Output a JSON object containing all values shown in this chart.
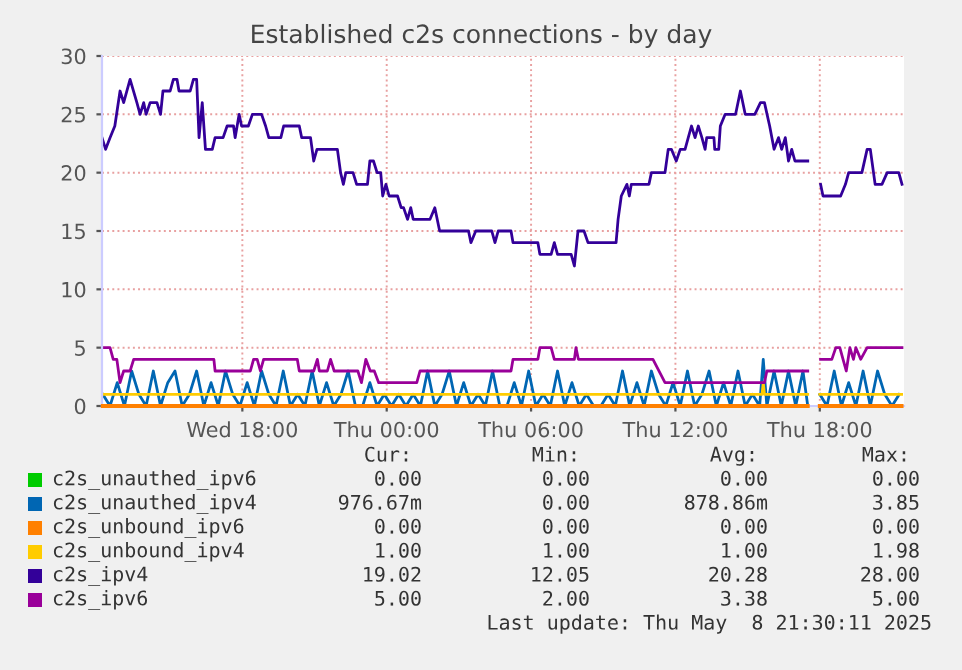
{
  "chart_data": {
    "type": "line",
    "title": "Established c2s connections - by day",
    "xlim": [
      "2025-05-07T12:10",
      "2025-05-08T21:30"
    ],
    "ylim": [
      0,
      30
    ],
    "yticks": [
      0,
      5,
      10,
      15,
      20,
      25,
      30
    ],
    "xticks": [
      {
        "value": "2025-05-07T18:00",
        "label": "Wed 18:00"
      },
      {
        "value": "2025-05-08T00:00",
        "label": "Thu 00:00"
      },
      {
        "value": "2025-05-08T06:00",
        "label": "Thu 06:00"
      },
      {
        "value": "2025-05-08T12:00",
        "label": "Thu 12:00"
      },
      {
        "value": "2025-05-08T18:00",
        "label": "Thu 18:00"
      }
    ],
    "grid": true,
    "legend": "bottom",
    "marker": "none",
    "line_style": "solid",
    "series": [
      {
        "name": "c2s_unauthed_ipv6",
        "color": "#00cc00"
      },
      {
        "name": "c2s_unauthed_ipv4",
        "color": "#0066b3",
        "x": [
          "2025-05-07T12:12",
          "2025-05-07T12:30",
          "2025-05-07T12:48",
          "2025-05-07T13:06",
          "2025-05-07T13:24",
          "2025-05-07T13:42",
          "2025-05-07T14:00",
          "2025-05-07T14:18",
          "2025-05-07T14:36",
          "2025-05-07T14:54",
          "2025-05-07T15:12",
          "2025-05-07T15:30",
          "2025-05-07T15:48",
          "2025-05-07T16:06",
          "2025-05-07T16:24",
          "2025-05-07T16:42",
          "2025-05-07T17:00",
          "2025-05-07T17:18",
          "2025-05-07T17:36",
          "2025-05-07T17:54",
          "2025-05-07T18:12",
          "2025-05-07T18:30",
          "2025-05-07T18:48",
          "2025-05-07T19:06",
          "2025-05-07T19:24",
          "2025-05-07T19:42",
          "2025-05-07T20:00",
          "2025-05-07T20:18",
          "2025-05-07T20:36",
          "2025-05-07T20:54",
          "2025-05-07T21:12",
          "2025-05-07T21:30",
          "2025-05-07T21:48",
          "2025-05-07T22:06",
          "2025-05-07T22:24",
          "2025-05-07T22:42",
          "2025-05-07T23:00",
          "2025-05-07T23:18",
          "2025-05-07T23:36",
          "2025-05-07T23:54",
          "2025-05-08T00:12",
          "2025-05-08T00:30",
          "2025-05-08T00:48",
          "2025-05-08T01:06",
          "2025-05-08T01:24",
          "2025-05-08T01:42",
          "2025-05-08T02:00",
          "2025-05-08T02:18",
          "2025-05-08T02:36",
          "2025-05-08T02:54",
          "2025-05-08T03:12",
          "2025-05-08T03:30",
          "2025-05-08T03:48",
          "2025-05-08T04:06",
          "2025-05-08T04:24",
          "2025-05-08T04:42",
          "2025-05-08T05:00",
          "2025-05-08T05:18",
          "2025-05-08T05:36",
          "2025-05-08T05:54",
          "2025-05-08T06:12",
          "2025-05-08T06:30",
          "2025-05-08T06:48",
          "2025-05-08T07:06",
          "2025-05-08T07:24",
          "2025-05-08T07:42",
          "2025-05-08T08:00",
          "2025-05-08T08:18",
          "2025-05-08T08:36",
          "2025-05-08T08:54",
          "2025-05-08T09:12",
          "2025-05-08T09:30",
          "2025-05-08T09:48",
          "2025-05-08T10:06",
          "2025-05-08T10:24",
          "2025-05-08T10:42",
          "2025-05-08T11:00",
          "2025-05-08T11:18",
          "2025-05-08T11:36",
          "2025-05-08T11:54",
          "2025-05-08T12:12",
          "2025-05-08T12:30",
          "2025-05-08T12:48",
          "2025-05-08T13:06",
          "2025-05-08T13:24",
          "2025-05-08T13:42",
          "2025-05-08T14:00",
          "2025-05-08T14:18",
          "2025-05-08T14:36",
          "2025-05-08T14:54",
          "2025-05-08T15:12",
          "2025-05-08T15:30",
          "2025-05-08T15:39",
          "2025-05-08T15:48",
          "2025-05-08T16:06",
          "2025-05-08T16:24",
          "2025-05-08T16:42",
          "2025-05-08T17:00",
          "2025-05-08T17:18",
          "2025-05-08T17:30",
          "2025-05-08T17:48",
          "2025-05-08T18:00",
          "2025-05-08T18:18",
          "2025-05-08T18:36",
          "2025-05-08T18:54",
          "2025-05-08T19:12",
          "2025-05-08T19:30",
          "2025-05-08T19:48",
          "2025-05-08T20:06",
          "2025-05-08T20:24",
          "2025-05-08T20:42",
          "2025-05-08T21:00",
          "2025-05-08T21:18"
        ],
        "values": [
          1,
          0,
          2,
          0,
          3,
          1,
          0,
          3,
          0,
          2,
          3,
          0,
          1,
          3,
          0,
          2,
          0,
          3,
          1,
          0,
          2,
          0,
          3,
          1,
          0,
          3,
          0,
          1,
          0,
          3,
          0,
          2,
          0,
          1,
          3,
          0,
          0,
          2,
          0,
          1,
          0,
          1,
          0,
          1,
          0,
          3,
          0,
          1,
          3,
          0,
          2,
          0,
          1,
          0,
          3,
          0,
          0,
          2,
          0,
          3,
          0,
          1,
          0,
          3,
          0,
          2,
          0,
          1,
          0,
          0,
          1,
          0,
          3,
          0,
          2,
          0,
          3,
          1,
          0,
          2,
          0,
          3,
          0,
          1,
          3,
          0,
          2,
          0,
          3,
          0,
          1,
          0,
          4,
          0,
          3,
          0,
          3,
          0,
          3,
          0,
          null,
          1,
          0,
          3,
          0,
          2,
          0,
          3,
          0,
          3,
          1,
          0,
          1
        ]
      },
      {
        "name": "c2s_unbound_ipv6",
        "color": "#ff8000",
        "x": [
          "2025-05-07T12:12",
          "2025-05-08T17:30",
          "2025-05-08T17:48",
          "2025-05-08T18:00",
          "2025-05-08T21:24"
        ],
        "values": [
          0,
          0,
          null,
          0,
          0
        ]
      },
      {
        "name": "c2s_unbound_ipv4",
        "color": "#ffcc00",
        "x": [
          "2025-05-07T12:12",
          "2025-05-08T15:36",
          "2025-05-08T15:39",
          "2025-05-08T15:42",
          "2025-05-08T17:30",
          "2025-05-08T17:48",
          "2025-05-08T18:00",
          "2025-05-08T21:24"
        ],
        "values": [
          1,
          1,
          2,
          1,
          1,
          null,
          1,
          1
        ]
      },
      {
        "name": "c2s_ipv4",
        "color": "#330099",
        "x": [
          "2025-05-07T12:10",
          "2025-05-07T12:19",
          "2025-05-07T12:30",
          "2025-05-07T12:42",
          "2025-05-07T12:55",
          "2025-05-07T13:04",
          "2025-05-07T13:20",
          "2025-05-07T13:37",
          "2025-05-07T13:45",
          "2025-05-07T13:54",
          "2025-05-07T14:00",
          "2025-05-07T14:10",
          "2025-05-07T14:27",
          "2025-05-07T14:36",
          "2025-05-07T14:42",
          "2025-05-07T15:00",
          "2025-05-07T15:08",
          "2025-05-07T15:17",
          "2025-05-07T15:22",
          "2025-05-07T15:50",
          "2025-05-07T15:58",
          "2025-05-07T16:06",
          "2025-05-07T16:12",
          "2025-05-07T16:20",
          "2025-05-07T16:28",
          "2025-05-07T16:45",
          "2025-05-07T16:52",
          "2025-05-07T17:12",
          "2025-05-07T17:22",
          "2025-05-07T17:38",
          "2025-05-07T17:42",
          "2025-05-07T17:52",
          "2025-05-07T17:58",
          "2025-05-07T18:15",
          "2025-05-07T18:25",
          "2025-05-07T18:48",
          "2025-05-07T18:58",
          "2025-05-07T19:06",
          "2025-05-07T19:36",
          "2025-05-07T19:43",
          "2025-05-07T20:22",
          "2025-05-07T20:28",
          "2025-05-07T20:50",
          "2025-05-07T20:58",
          "2025-05-07T21:06",
          "2025-05-07T21:57",
          "2025-05-07T22:05",
          "2025-05-07T22:12",
          "2025-05-07T22:18",
          "2025-05-07T22:36",
          "2025-05-07T22:45",
          "2025-05-07T23:12",
          "2025-05-07T23:18",
          "2025-05-07T23:27",
          "2025-05-07T23:36",
          "2025-05-07T23:45",
          "2025-05-07T23:50",
          "2025-05-07T23:58",
          "2025-05-08T00:06",
          "2025-05-08T00:27",
          "2025-05-08T00:36",
          "2025-05-08T00:42",
          "2025-05-08T00:52",
          "2025-05-08T01:00",
          "2025-05-08T01:06",
          "2025-05-08T01:48",
          "2025-05-08T02:00",
          "2025-05-08T02:12",
          "2025-05-08T03:24",
          "2025-05-08T03:30",
          "2025-05-08T03:42",
          "2025-05-08T04:22",
          "2025-05-08T04:30",
          "2025-05-08T04:38",
          "2025-05-08T05:10",
          "2025-05-08T05:15",
          "2025-05-08T06:17",
          "2025-05-08T06:22",
          "2025-05-08T06:50",
          "2025-05-08T06:58",
          "2025-05-08T07:06",
          "2025-05-08T07:40",
          "2025-05-08T07:48",
          "2025-05-08T07:57",
          "2025-05-08T08:12",
          "2025-05-08T08:22",
          "2025-05-08T09:32",
          "2025-05-08T09:37",
          "2025-05-08T09:45",
          "2025-05-08T09:59",
          "2025-05-08T10:05",
          "2025-05-08T10:10",
          "2025-05-08T10:54",
          "2025-05-08T11:00",
          "2025-05-08T11:34",
          "2025-05-08T11:42",
          "2025-05-08T11:50",
          "2025-05-08T12:02",
          "2025-05-08T12:12",
          "2025-05-08T12:24",
          "2025-05-08T12:32",
          "2025-05-08T12:40",
          "2025-05-08T12:49",
          "2025-05-08T12:57",
          "2025-05-08T13:06",
          "2025-05-08T13:14",
          "2025-05-08T13:18",
          "2025-05-08T13:36",
          "2025-05-08T13:38",
          "2025-05-08T13:48",
          "2025-05-08T13:52",
          "2025-05-08T14:04",
          "2025-05-08T14:30",
          "2025-05-08T14:42",
          "2025-05-08T14:54",
          "2025-05-08T15:18",
          "2025-05-08T15:32",
          "2025-05-08T15:42",
          "2025-05-08T15:55",
          "2025-05-08T16:06",
          "2025-05-08T16:17",
          "2025-05-08T16:25",
          "2025-05-08T16:34",
          "2025-05-08T16:42",
          "2025-05-08T16:50",
          "2025-05-08T16:58",
          "2025-05-08T17:30",
          "2025-05-08T17:48",
          "2025-05-08T18:02",
          "2025-05-08T18:08",
          "2025-05-08T18:52",
          "2025-05-08T19:04",
          "2025-05-08T19:12",
          "2025-05-08T19:45",
          "2025-05-08T19:58",
          "2025-05-08T20:06",
          "2025-05-08T20:18",
          "2025-05-08T20:35",
          "2025-05-08T20:48",
          "2025-05-08T21:17",
          "2025-05-08T21:25"
        ],
        "values": [
          23,
          22,
          23,
          24,
          27,
          26,
          28,
          26,
          25,
          26,
          25,
          26,
          26,
          25,
          27,
          27,
          28,
          28,
          27,
          27,
          28,
          28,
          23,
          26,
          22,
          22,
          23,
          23,
          24,
          24,
          23,
          25,
          24,
          24,
          25,
          25,
          24,
          23,
          23,
          24,
          24,
          23,
          23,
          21,
          22,
          22,
          20,
          19,
          20,
          20,
          19,
          19,
          21,
          21,
          20,
          20,
          18,
          19,
          18,
          18,
          17,
          17,
          16,
          17,
          16,
          16,
          17,
          15,
          15,
          14,
          15,
          15,
          14,
          15,
          15,
          14,
          14,
          13,
          13,
          14,
          13,
          13,
          12,
          15,
          15,
          14,
          14,
          16,
          18,
          19,
          18,
          19,
          19,
          20,
          20,
          22,
          22,
          21,
          22,
          22,
          23,
          24,
          23,
          24,
          23,
          22,
          23,
          23,
          22,
          22,
          24,
          25,
          25,
          27,
          25,
          25,
          26,
          26,
          24,
          22,
          23,
          22,
          23,
          21,
          22,
          21,
          21,
          null,
          19,
          18,
          18,
          19,
          20,
          20,
          22,
          22,
          19,
          19,
          20,
          20,
          19
        ]
      },
      {
        "name": "c2s_ipv6",
        "color": "#990099",
        "x": [
          "2025-05-07T12:10",
          "2025-05-07T12:30",
          "2025-05-07T12:38",
          "2025-05-07T12:47",
          "2025-05-07T12:55",
          "2025-05-07T13:04",
          "2025-05-07T13:20",
          "2025-05-07T13:29",
          "2025-05-07T16:49",
          "2025-05-07T16:52",
          "2025-05-07T18:20",
          "2025-05-07T18:28",
          "2025-05-07T18:37",
          "2025-05-07T18:45",
          "2025-05-07T18:53",
          "2025-05-07T18:58",
          "2025-05-07T20:17",
          "2025-05-07T20:22",
          "2025-05-07T20:58",
          "2025-05-07T21:07",
          "2025-05-07T21:12",
          "2025-05-07T21:32",
          "2025-05-07T21:40",
          "2025-05-07T21:49",
          "2025-05-07T21:54",
          "2025-05-07T22:48",
          "2025-05-07T22:57",
          "2025-05-07T23:08",
          "2025-05-07T23:19",
          "2025-05-07T23:29",
          "2025-05-07T23:40",
          "2025-05-08T01:15",
          "2025-05-08T01:23",
          "2025-05-08T03:55",
          "2025-05-08T05:10",
          "2025-05-08T05:15",
          "2025-05-08T06:17",
          "2025-05-08T06:22",
          "2025-05-08T06:50",
          "2025-05-08T06:58",
          "2025-05-08T07:48",
          "2025-05-08T07:52",
          "2025-05-08T07:58",
          "2025-05-08T11:04",
          "2025-05-08T11:34",
          "2025-05-08T15:42",
          "2025-05-08T15:48",
          "2025-05-08T17:30",
          "2025-05-08T17:48",
          "2025-05-08T18:02",
          "2025-05-08T18:30",
          "2025-05-08T18:40",
          "2025-05-08T18:50",
          "2025-05-08T18:58",
          "2025-05-08T19:06",
          "2025-05-08T19:15",
          "2025-05-08T19:24",
          "2025-05-08T19:30",
          "2025-05-08T19:42",
          "2025-05-08T19:58",
          "2025-05-08T21:25"
        ],
        "values": [
          5,
          5,
          4,
          4,
          2,
          3,
          3,
          4,
          4,
          3,
          3,
          4,
          4,
          3,
          4,
          4,
          4,
          3,
          3,
          4,
          3,
          3,
          4,
          3,
          3,
          3,
          2,
          4,
          3,
          3,
          2,
          2,
          3,
          3,
          3,
          4,
          4,
          5,
          5,
          4,
          4,
          5,
          4,
          4,
          2,
          2,
          3,
          3,
          null,
          4,
          4,
          5,
          5,
          4,
          3,
          5,
          4,
          5,
          4,
          5,
          5
        ]
      }
    ],
    "annotations": [
      "Cur:",
      "Min:",
      "Avg:",
      "Max:",
      "0.00",
      "0.00",
      "0.00",
      "0.00",
      "976.67m",
      "0.00",
      "878.86m",
      "3.85",
      "0.00",
      "0.00",
      "0.00",
      "0.00",
      "1.00",
      "1.00",
      "1.00",
      "1.98",
      "19.02",
      "12.05",
      "20.28",
      "28.00",
      "5.00",
      "2.00",
      "3.38",
      "5.00",
      "Last update: Thu May  8 21:30:11 2025"
    ]
  }
}
